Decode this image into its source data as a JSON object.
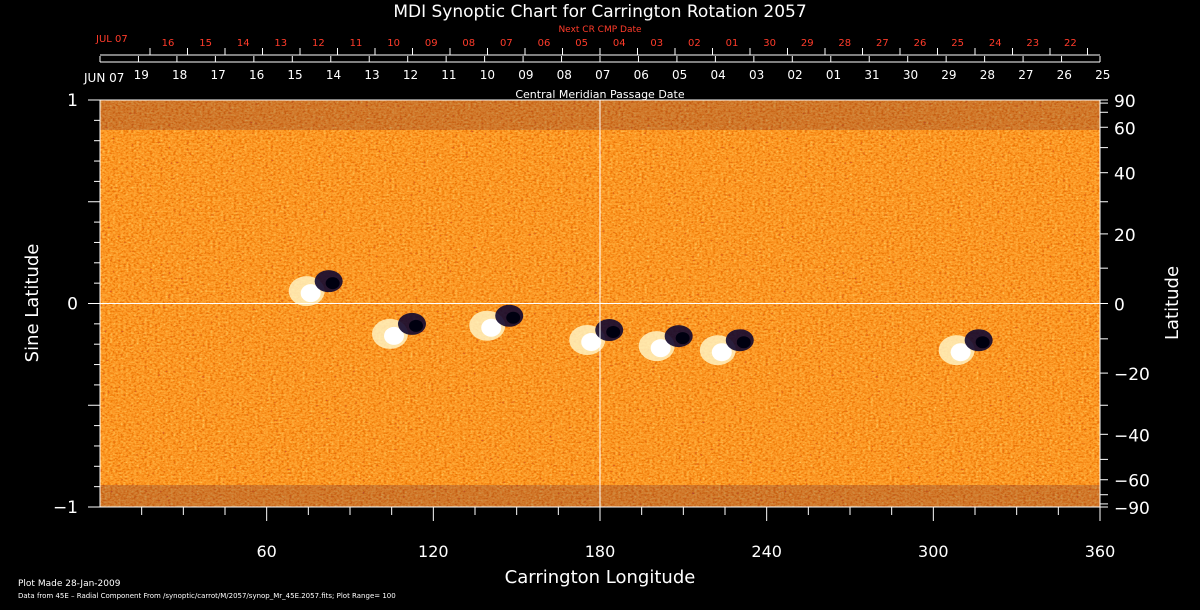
{
  "chart_data": {
    "type": "heatmap",
    "title": "MDI Synoptic Chart for Carrington Rotation 2057",
    "subtitle_next": "Next CR CMP Date",
    "subtitle_cmp": "Central Meridian Passage Date",
    "xlabel": "Carrington Longitude",
    "ylabel_left": "Sine Latitude",
    "ylabel_right": "Latitude",
    "xlim": [
      0,
      360
    ],
    "ylim_sine": [
      -1,
      1
    ],
    "x_ticks": [
      60,
      120,
      180,
      240,
      300,
      360
    ],
    "y_ticks_sine": [
      -1,
      0,
      1
    ],
    "y_ticks_latitude": [
      -90,
      -60,
      -40,
      -20,
      0,
      20,
      40,
      60,
      90
    ],
    "top_month_label": "JUN 07",
    "top_dates": [
      "19",
      "18",
      "17",
      "16",
      "15",
      "14",
      "13",
      "12",
      "11",
      "10",
      "09",
      "08",
      "07",
      "06",
      "05",
      "04",
      "03",
      "02",
      "01",
      "31",
      "30",
      "29",
      "28",
      "27",
      "26",
      "25"
    ],
    "next_month_label": "JUL 07",
    "next_dates": [
      "16",
      "15",
      "14",
      "13",
      "12",
      "11",
      "10",
      "09",
      "08",
      "07",
      "06",
      "05",
      "04",
      "03",
      "02",
      "01",
      "30",
      "29",
      "28",
      "27",
      "26",
      "25",
      "24",
      "23",
      "22"
    ],
    "central_meridian_longitude": 180,
    "colormap": [
      "#1a0a4a",
      "#cc2200",
      "#ff5a10",
      "#ffd040",
      "#ffffff"
    ],
    "active_regions": [
      {
        "lon": 78,
        "sinlat": 0.09
      },
      {
        "lon": 108,
        "sinlat": -0.12
      },
      {
        "lon": 143,
        "sinlat": -0.08
      },
      {
        "lon": 179,
        "sinlat": -0.15
      },
      {
        "lon": 204,
        "sinlat": -0.18
      },
      {
        "lon": 226,
        "sinlat": -0.2
      },
      {
        "lon": 312,
        "sinlat": -0.2
      }
    ],
    "footer_made": "Plot Made 28-Jan-2009",
    "footer_source": "Data from 45E – Radial Component From /synoptic/carrot/M/2057/synop_Mr_45E.2057.fits; Plot Range=  100"
  }
}
